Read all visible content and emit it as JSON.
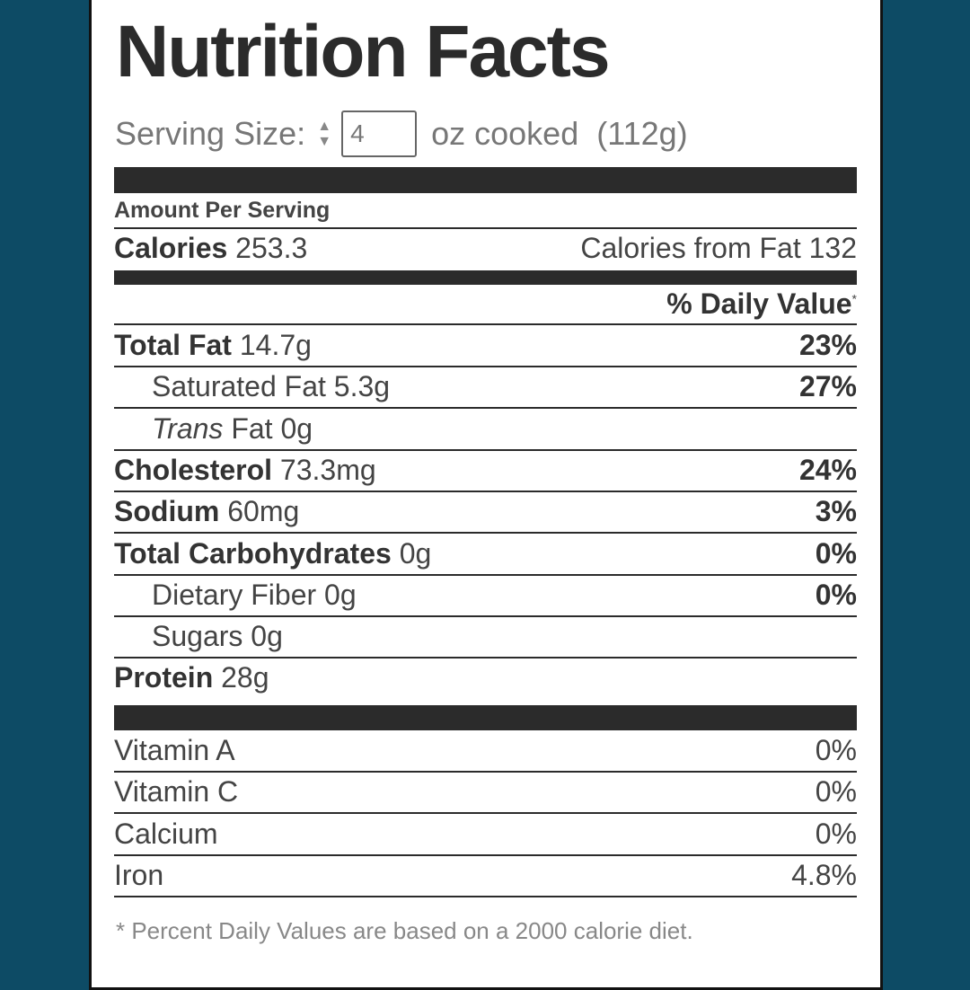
{
  "title": "Nutrition Facts",
  "serving": {
    "label": "Serving Size:",
    "value": "4",
    "unit": "oz cooked",
    "grams": "(112g)"
  },
  "amount_per_serving": "Amount Per Serving",
  "calories": {
    "label": "Calories",
    "value": "253.3",
    "from_fat": "Calories from Fat 132"
  },
  "daily_value_header": "% Daily Value",
  "daily_value_mark": "*",
  "nutrients": [
    {
      "label": "Total Fat",
      "value": "14.7g",
      "dv": "23%"
    },
    {
      "label": "Saturated Fat",
      "value": "5.3g",
      "dv": "27%"
    },
    {
      "label": "Trans",
      "label2": "Fat",
      "value": "0g",
      "dv": ""
    },
    {
      "label": "Cholesterol",
      "value": "73.3mg",
      "dv": "24%"
    },
    {
      "label": "Sodium",
      "value": "60mg",
      "dv": "3%"
    },
    {
      "label": "Total Carbohydrates",
      "value": "0g",
      "dv": "0%"
    },
    {
      "label": "Dietary Fiber",
      "value": "0g",
      "dv": "0%"
    },
    {
      "label": "Sugars",
      "value": "0g",
      "dv": ""
    },
    {
      "label": "Protein",
      "value": "28g",
      "dv": ""
    }
  ],
  "vitamins": [
    {
      "label": "Vitamin A",
      "dv": "0%"
    },
    {
      "label": "Vitamin C",
      "dv": "0%"
    },
    {
      "label": "Calcium",
      "dv": "0%"
    },
    {
      "label": "Iron",
      "dv": "4.8%"
    }
  ],
  "footnote": "* Percent Daily Values are based on a 2000 calorie diet."
}
